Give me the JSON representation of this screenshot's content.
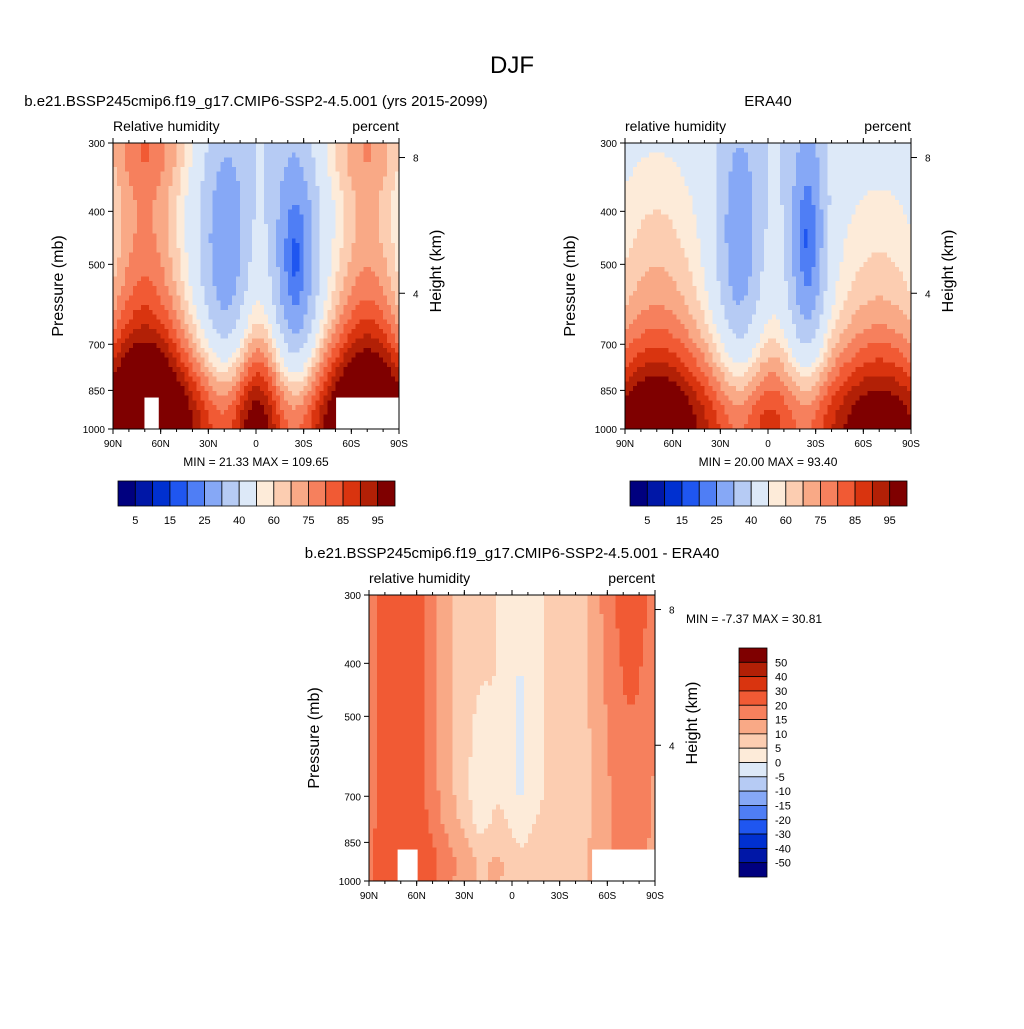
{
  "figure": {
    "title": "DJF"
  },
  "panels": [
    {
      "id": "model",
      "title": "b.e21.BSSP245cmip6.f19_g17.CMIP6-SSP2-4.5.001 (yrs 2015-2099)",
      "left_label": "Relative humidity",
      "right_label": "percent",
      "stats": "MIN =  21.33  MAX = 109.65"
    },
    {
      "id": "obs",
      "title": "ERA40",
      "left_label": "relative humidity",
      "right_label": "percent",
      "stats": "MIN =  20.00  MAX =  93.40"
    },
    {
      "id": "diff",
      "title": "b.e21.BSSP245cmip6.f19_g17.CMIP6-SSP2-4.5.001 - ERA40",
      "left_label": "relative humidity",
      "right_label": "percent",
      "stats": "MIN =  -7.37  MAX =  30.81"
    }
  ],
  "axes": {
    "ylabel": "Pressure (mb)",
    "y2label": "Height (km)",
    "xticks": [
      "90N",
      "60N",
      "30N",
      "0",
      "30S",
      "60S",
      "90S"
    ],
    "yticks": [
      "300",
      "400",
      "500",
      "700",
      "850",
      "1000"
    ],
    "yticks_values": [
      300,
      400,
      500,
      700,
      850,
      1000
    ],
    "y2ticks": [
      "8",
      "4"
    ],
    "y2ticks_values": [
      8,
      4
    ],
    "ylim": [
      1000,
      300
    ],
    "xlim": [
      90,
      -90
    ]
  },
  "colorbars": {
    "rh": {
      "shown_labels": [
        "5",
        "15",
        "25",
        "40",
        "60",
        "75",
        "85",
        "95"
      ],
      "levels": [
        5,
        10,
        15,
        20,
        25,
        30,
        40,
        50,
        60,
        65,
        70,
        75,
        80,
        85,
        90,
        95
      ],
      "colors": [
        "#00007f",
        "#0017a7",
        "#0030d0",
        "#1f56f0",
        "#4f7ef5",
        "#86a8f6",
        "#b6cbf4",
        "#dde9f8",
        "#fdebd9",
        "#fccdb1",
        "#f9a986",
        "#f6805d",
        "#f15a34",
        "#d9340f",
        "#b22006",
        "#7f0000"
      ]
    },
    "diff": {
      "labels": [
        "50",
        "40",
        "30",
        "20",
        "15",
        "10",
        "5",
        "0",
        "-5",
        "-10",
        "-15",
        "-20",
        "-30",
        "-40",
        "-50"
      ],
      "colors": [
        "#7f0000",
        "#b22006",
        "#d9340f",
        "#f15a34",
        "#f6805d",
        "#f9a986",
        "#fccdb1",
        "#fdebd9",
        "#dde9f8",
        "#b6cbf4",
        "#86a8f6",
        "#4f7ef5",
        "#1f56f0",
        "#0030d0",
        "#0017a7",
        "#00007f"
      ]
    }
  },
  "chart_data": [
    {
      "type": "heatmap",
      "title": "b.e21.BSSP245cmip6.f19_g17.CMIP6-SSP2-4.5.001 (yrs 2015-2099)",
      "variable": "Relative humidity",
      "units": "percent",
      "xlabel": "",
      "ylabel": "Pressure (mb)",
      "y2label": "Height (km)",
      "x": [
        -90,
        -60,
        -30,
        0,
        30,
        60,
        90
      ],
      "y": [
        300,
        400,
        500,
        700,
        850,
        1000
      ],
      "min": 21.33,
      "max": 109.65
    },
    {
      "type": "heatmap",
      "title": "ERA40",
      "variable": "relative humidity",
      "units": "percent",
      "xlabel": "",
      "ylabel": "Pressure (mb)",
      "y2label": "Height (km)",
      "x": [
        -90,
        -60,
        -30,
        0,
        30,
        60,
        90
      ],
      "y": [
        300,
        400,
        500,
        700,
        850,
        1000
      ],
      "min": 20.0,
      "max": 93.4
    },
    {
      "type": "heatmap",
      "title": "b.e21.BSSP245cmip6.f19_g17.CMIP6-SSP2-4.5.001 - ERA40",
      "variable": "relative humidity",
      "units": "percent",
      "xlabel": "",
      "ylabel": "Pressure (mb)",
      "y2label": "Height (km)",
      "x": [
        -90,
        -60,
        -30,
        0,
        30,
        60,
        90
      ],
      "y": [
        300,
        400,
        500,
        700,
        850,
        1000
      ],
      "min": -7.37,
      "max": 30.81
    }
  ]
}
